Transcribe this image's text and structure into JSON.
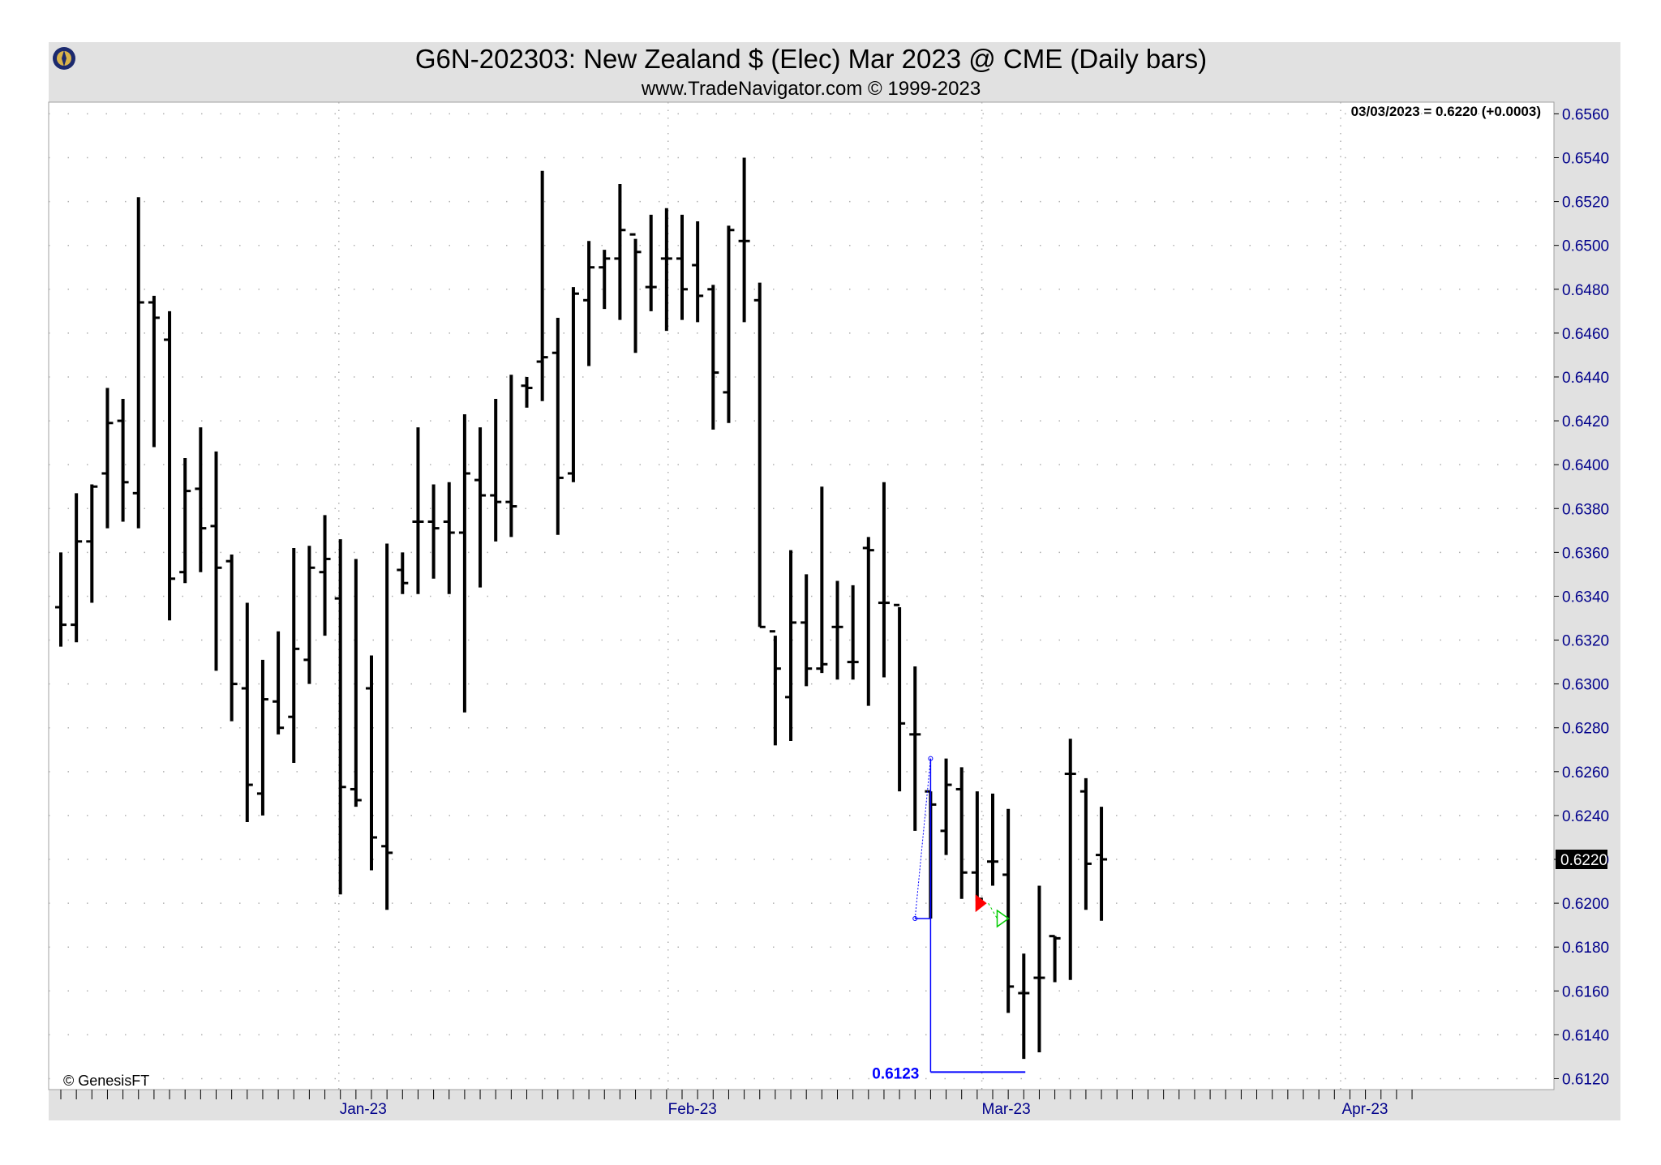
{
  "header": {
    "title": "G6N-202303:  New Zealand $ (Elec) Mar 2023 @ CME  (Daily bars)",
    "subtitle": "www.TradeNavigator.com © 1999-2023",
    "last_value_label": "03/03/2023 = 0.6220 (+0.0003)",
    "credit": "© GenesisFT",
    "logo_icon": "compass-rose-logo-icon"
  },
  "colors": {
    "frame_gray": "#e1e1e1",
    "axis_text": "#00008b",
    "bar": "#000000",
    "annotation_blue": "#0000ff",
    "marker_red": "#ff0000",
    "marker_green": "#00cc00"
  },
  "chart_data": {
    "type": "ohlc",
    "ylim": [
      0.6115,
      0.6562
    ],
    "yticks": [
      "0.6560",
      "0.6540",
      "0.6520",
      "0.6500",
      "0.6480",
      "0.6460",
      "0.6440",
      "0.6420",
      "0.6400",
      "0.6380",
      "0.6360",
      "0.6340",
      "0.6320",
      "0.6300",
      "0.6280",
      "0.6260",
      "0.6240",
      "0.6220",
      "0.6200",
      "0.6180",
      "0.6160",
      "0.6140",
      "0.6120"
    ],
    "month_labels": [
      {
        "label": "Jan-23",
        "index": 17.9
      },
      {
        "label": "Feb-23",
        "index": 39.1
      },
      {
        "label": "Mar-23",
        "index": 59.3
      },
      {
        "label": "Apr-23",
        "index": 82.4
      }
    ],
    "last_price_label": "0.6220",
    "last_price": 0.622,
    "bars": [
      {
        "o": 0.6335,
        "h": 0.636,
        "l": 0.6317,
        "c": 0.6327
      },
      {
        "o": 0.6327,
        "h": 0.6387,
        "l": 0.6319,
        "c": 0.6365
      },
      {
        "o": 0.6365,
        "h": 0.6391,
        "l": 0.6337,
        "c": 0.639
      },
      {
        "o": 0.6396,
        "h": 0.6435,
        "l": 0.6371,
        "c": 0.6419
      },
      {
        "o": 0.642,
        "h": 0.643,
        "l": 0.6374,
        "c": 0.6392
      },
      {
        "o": 0.6387,
        "h": 0.6522,
        "l": 0.6371,
        "c": 0.6474
      },
      {
        "o": 0.6474,
        "h": 0.6477,
        "l": 0.6408,
        "c": 0.6467
      },
      {
        "o": 0.6457,
        "h": 0.647,
        "l": 0.6329,
        "c": 0.6348
      },
      {
        "o": 0.6351,
        "h": 0.6403,
        "l": 0.6346,
        "c": 0.6388
      },
      {
        "o": 0.6389,
        "h": 0.6417,
        "l": 0.6351,
        "c": 0.6371
      },
      {
        "o": 0.6372,
        "h": 0.6406,
        "l": 0.6306,
        "c": 0.6353
      },
      {
        "o": 0.6356,
        "h": 0.6359,
        "l": 0.6283,
        "c": 0.63
      },
      {
        "o": 0.6298,
        "h": 0.6337,
        "l": 0.6237,
        "c": 0.6254
      },
      {
        "o": 0.625,
        "h": 0.6311,
        "l": 0.624,
        "c": 0.6293
      },
      {
        "o": 0.6292,
        "h": 0.6324,
        "l": 0.6277,
        "c": 0.628
      },
      {
        "o": 0.6285,
        "h": 0.6362,
        "l": 0.6264,
        "c": 0.6316
      },
      {
        "o": 0.6311,
        "h": 0.6363,
        "l": 0.63,
        "c": 0.6353
      },
      {
        "o": 0.6351,
        "h": 0.6377,
        "l": 0.6322,
        "c": 0.6357
      },
      {
        "o": 0.6339,
        "h": 0.6366,
        "l": 0.6204,
        "c": 0.6253
      },
      {
        "o": 0.6252,
        "h": 0.6357,
        "l": 0.6244,
        "c": 0.6247
      },
      {
        "o": 0.6298,
        "h": 0.6313,
        "l": 0.6215,
        "c": 0.623
      },
      {
        "o": 0.6226,
        "h": 0.6364,
        "l": 0.6197,
        "c": 0.6223
      },
      {
        "o": 0.6352,
        "h": 0.636,
        "l": 0.6341,
        "c": 0.6346
      },
      {
        "o": 0.6374,
        "h": 0.6417,
        "l": 0.6341,
        "c": 0.6374
      },
      {
        "o": 0.6374,
        "h": 0.6391,
        "l": 0.6348,
        "c": 0.6371
      },
      {
        "o": 0.6374,
        "h": 0.6392,
        "l": 0.6341,
        "c": 0.6369
      },
      {
        "o": 0.6369,
        "h": 0.6423,
        "l": 0.6287,
        "c": 0.6396
      },
      {
        "o": 0.6393,
        "h": 0.6417,
        "l": 0.6344,
        "c": 0.6386
      },
      {
        "o": 0.6386,
        "h": 0.643,
        "l": 0.6365,
        "c": 0.6383
      },
      {
        "o": 0.6383,
        "h": 0.6441,
        "l": 0.6367,
        "c": 0.6381
      },
      {
        "o": 0.6436,
        "h": 0.644,
        "l": 0.6426,
        "c": 0.6435
      },
      {
        "o": 0.6447,
        "h": 0.6534,
        "l": 0.6429,
        "c": 0.6449
      },
      {
        "o": 0.6451,
        "h": 0.6467,
        "l": 0.6368,
        "c": 0.6394
      },
      {
        "o": 0.6396,
        "h": 0.6481,
        "l": 0.6392,
        "c": 0.6478
      },
      {
        "o": 0.6475,
        "h": 0.6502,
        "l": 0.6445,
        "c": 0.649
      },
      {
        "o": 0.649,
        "h": 0.6498,
        "l": 0.6471,
        "c": 0.6494
      },
      {
        "o": 0.6494,
        "h": 0.6528,
        "l": 0.6466,
        "c": 0.6507
      },
      {
        "o": 0.6505,
        "h": 0.6503,
        "l": 0.6451,
        "c": 0.6497
      },
      {
        "o": 0.6481,
        "h": 0.6514,
        "l": 0.647,
        "c": 0.6481
      },
      {
        "o": 0.6494,
        "h": 0.6517,
        "l": 0.6461,
        "c": 0.6494
      },
      {
        "o": 0.6494,
        "h": 0.6514,
        "l": 0.6466,
        "c": 0.648
      },
      {
        "o": 0.6491,
        "h": 0.6511,
        "l": 0.6465,
        "c": 0.6477
      },
      {
        "o": 0.648,
        "h": 0.6482,
        "l": 0.6416,
        "c": 0.6442
      },
      {
        "o": 0.6433,
        "h": 0.6509,
        "l": 0.6419,
        "c": 0.6507
      },
      {
        "o": 0.6502,
        "h": 0.654,
        "l": 0.6465,
        "c": 0.6502
      },
      {
        "o": 0.6475,
        "h": 0.6483,
        "l": 0.6326,
        "c": 0.6326
      },
      {
        "o": 0.6324,
        "h": 0.6322,
        "l": 0.6272,
        "c": 0.6307
      },
      {
        "o": 0.6294,
        "h": 0.6361,
        "l": 0.6274,
        "c": 0.6328
      },
      {
        "o": 0.6328,
        "h": 0.635,
        "l": 0.6299,
        "c": 0.6307
      },
      {
        "o": 0.6307,
        "h": 0.639,
        "l": 0.6305,
        "c": 0.6309
      },
      {
        "o": 0.6326,
        "h": 0.6347,
        "l": 0.6302,
        "c": 0.6326
      },
      {
        "o": 0.631,
        "h": 0.6345,
        "l": 0.6302,
        "c": 0.631
      },
      {
        "o": 0.6362,
        "h": 0.6367,
        "l": 0.629,
        "c": 0.6361
      },
      {
        "o": 0.6337,
        "h": 0.6392,
        "l": 0.6303,
        "c": 0.6337
      },
      {
        "o": 0.6336,
        "h": 0.6335,
        "l": 0.6251,
        "c": 0.6282
      },
      {
        "o": 0.6277,
        "h": 0.6308,
        "l": 0.6233,
        "c": 0.6277
      },
      {
        "o": 0.6251,
        "h": 0.6251,
        "l": 0.6193,
        "c": 0.6245
      },
      {
        "o": 0.6233,
        "h": 0.6266,
        "l": 0.6222,
        "c": 0.6254
      },
      {
        "o": 0.6252,
        "h": 0.6262,
        "l": 0.6202,
        "c": 0.6214
      },
      {
        "o": 0.6214,
        "h": 0.6251,
        "l": 0.6201,
        "c": 0.6202
      },
      {
        "o": 0.6219,
        "h": 0.625,
        "l": 0.6208,
        "c": 0.6219
      },
      {
        "o": 0.6213,
        "h": 0.6243,
        "l": 0.615,
        "c": 0.6162
      },
      {
        "o": 0.6159,
        "h": 0.6177,
        "l": 0.6129,
        "c": 0.6159
      },
      {
        "o": 0.6166,
        "h": 0.6208,
        "l": 0.6132,
        "c": 0.6166
      },
      {
        "o": 0.6185,
        "h": 0.6185,
        "l": 0.6164,
        "c": 0.6184
      },
      {
        "o": 0.6259,
        "h": 0.6275,
        "l": 0.6165,
        "c": 0.6259
      },
      {
        "o": 0.6251,
        "h": 0.6257,
        "l": 0.6197,
        "c": 0.6218
      },
      {
        "o": 0.6222,
        "h": 0.6244,
        "l": 0.6192,
        "c": 0.622
      }
    ],
    "annotations": {
      "low_label": "0.6123",
      "low_value": 0.6123
    }
  }
}
